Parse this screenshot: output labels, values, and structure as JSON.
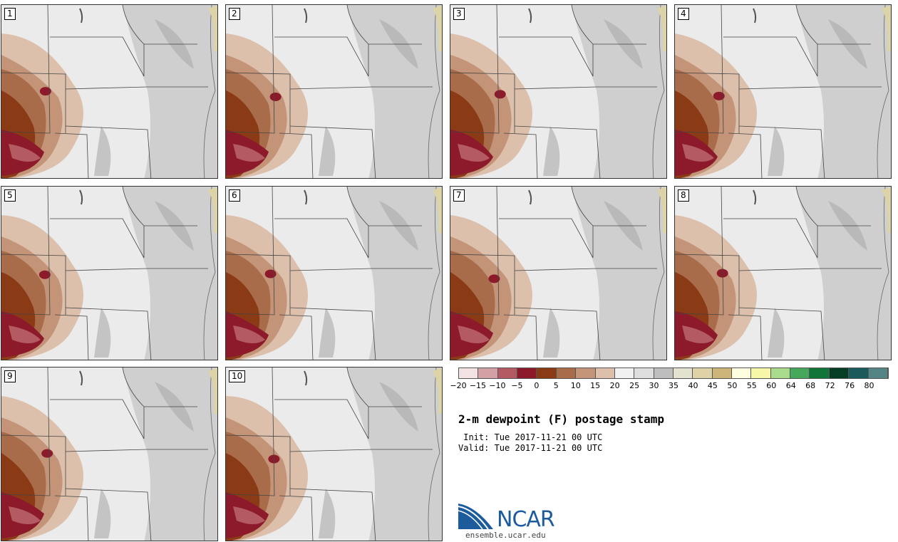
{
  "title": "2-m dewpoint (F) postage stamp",
  "init_text": " Init: Tue 2017-11-21 00 UTC",
  "valid_text": "Valid: Tue 2017-11-21 00 UTC",
  "logo_text": "NCAR",
  "url_text": "ensemble.ucar.edu",
  "panels": [
    {
      "label": "1"
    },
    {
      "label": "2"
    },
    {
      "label": "3"
    },
    {
      "label": "4"
    },
    {
      "label": "5"
    },
    {
      "label": "6"
    },
    {
      "label": "7"
    },
    {
      "label": "8"
    },
    {
      "label": "9"
    },
    {
      "label": "10"
    }
  ],
  "colorbar": {
    "colors": [
      "#f2e2e4",
      "#d3a0a5",
      "#b35a63",
      "#8c1a2a",
      "#8b3a16",
      "#a86c4a",
      "#c39478",
      "#dcc0ac",
      "#f0f0f0",
      "#dedede",
      "#bebebe",
      "#e3e2d0",
      "#dfd2a6",
      "#cdb478",
      "#ffffe0",
      "#f7f7a8",
      "#a8dc8c",
      "#46a85a",
      "#127538",
      "#053d25",
      "#1a5a5a",
      "#548484"
    ],
    "tick_labels": [
      "−20",
      "−15",
      "−10",
      "−5",
      "0",
      "5",
      "10",
      "15",
      "20",
      "25",
      "30",
      "35",
      "40",
      "45",
      "50",
      "55",
      "60",
      "64",
      "68",
      "72",
      "76",
      "80"
    ]
  }
}
